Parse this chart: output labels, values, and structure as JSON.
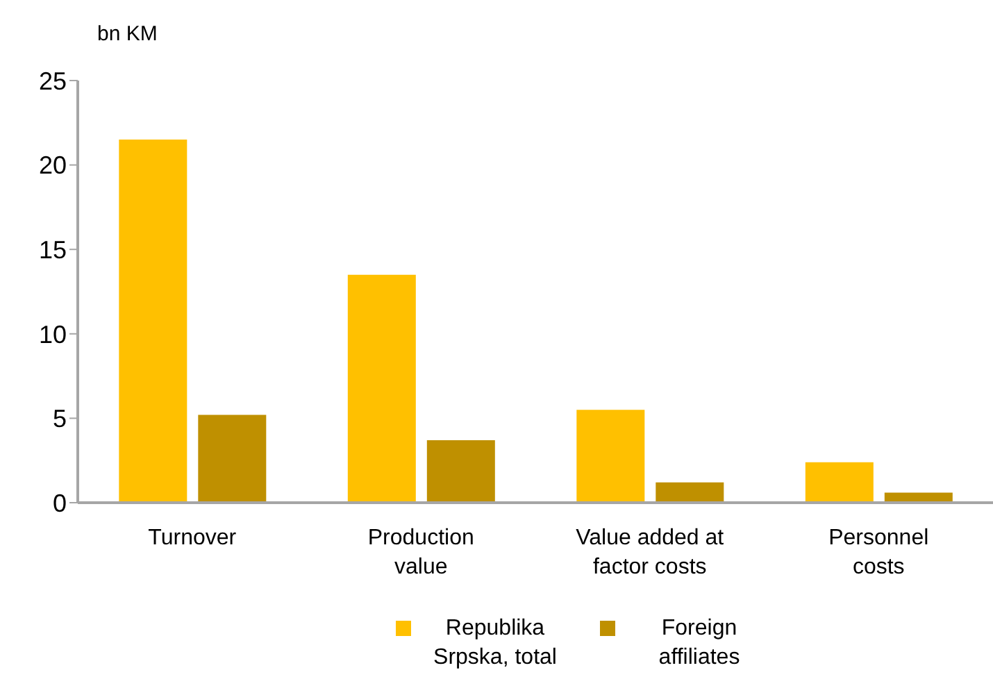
{
  "chart_data": {
    "type": "bar",
    "ylabel": "bn KM",
    "categories": [
      "Turnover",
      "Production value",
      "Value added at factor costs",
      "Personnel costs"
    ],
    "series": [
      {
        "name": "Republika Srpska, total",
        "color": "#ffc000",
        "values": [
          21.5,
          13.5,
          5.5,
          2.4
        ]
      },
      {
        "name": "Foreign affiliates",
        "color": "#bf9000",
        "values": [
          5.2,
          3.7,
          1.2,
          0.6
        ]
      }
    ],
    "ylim": [
      0,
      25
    ],
    "yticks": [
      0,
      5,
      10,
      15,
      20,
      25
    ],
    "grid": false,
    "legend": "bottom"
  }
}
